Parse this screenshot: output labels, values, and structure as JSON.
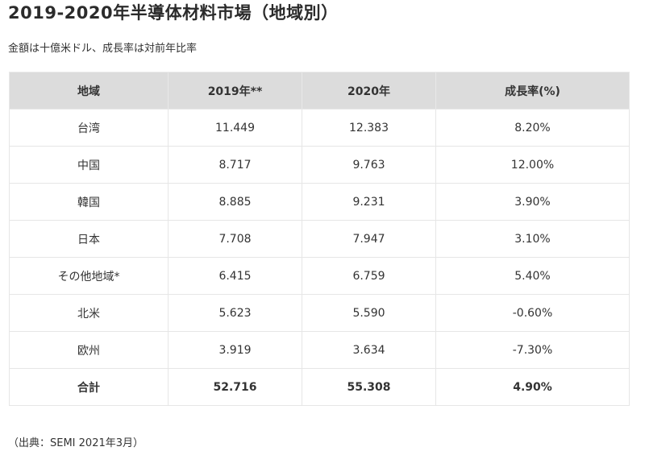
{
  "title": "2019-2020年半導体材料市場（地域別）",
  "subtitle": "金額は十億米ドル、成長率は対前年比率",
  "table": {
    "headers": [
      "地域",
      "2019年**",
      "2020年",
      "成長率(%)"
    ],
    "rows": [
      [
        "台湾",
        "11.449",
        "12.383",
        "8.20%"
      ],
      [
        "中国",
        "8.717",
        "9.763",
        "12.00%"
      ],
      [
        "韓国",
        "8.885",
        "9.231",
        "3.90%"
      ],
      [
        "日本",
        "7.708",
        "7.947",
        "3.10%"
      ],
      [
        "その他地域*",
        "6.415",
        "6.759",
        "5.40%"
      ],
      [
        "北米",
        "5.623",
        "5.590",
        "-0.60%"
      ],
      [
        "欧州",
        "3.919",
        "3.634",
        "-7.30%"
      ]
    ],
    "total": [
      "合計",
      "52.716",
      "55.308",
      "4.90%"
    ]
  },
  "source": "（出典：SEMI 2021年3月）",
  "colors": {
    "header_bg": "#dcdcdc",
    "text": "#333333",
    "border": "#e6e6e6"
  }
}
